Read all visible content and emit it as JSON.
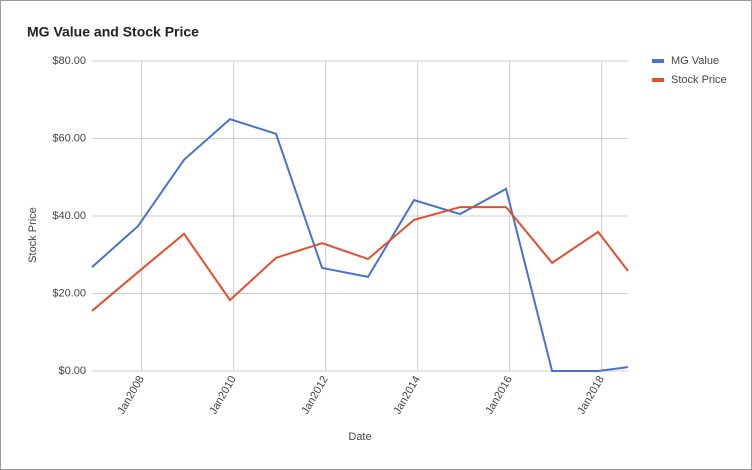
{
  "chart_data": {
    "type": "line",
    "title": "MG Value and Stock Price",
    "x_label": "Date",
    "y_label": "Stock Price",
    "x": [
      2006.92,
      2007.92,
      2008.92,
      2009.92,
      2010.92,
      2011.92,
      2012.92,
      2013.92,
      2014.92,
      2015.92,
      2016.92,
      2017.92,
      2018.57
    ],
    "series": [
      {
        "name": "MG Value",
        "color": "#4a72cd",
        "values": [
          26.8,
          37.4,
          54.5,
          65.0,
          61.2,
          26.6,
          24.3,
          44.1,
          40.5,
          47.0,
          0,
          0,
          1.0
        ]
      },
      {
        "name": "Stock Price",
        "color": "#e0502d",
        "values": [
          15.5,
          25.5,
          35.4,
          18.3,
          29.2,
          33.0,
          28.9,
          39.0,
          42.3,
          42.3,
          27.9,
          35.9,
          25.8
        ]
      }
    ],
    "xlim": [
      2006.92,
      2018.57
    ],
    "xticks": [
      {
        "value": 2008,
        "label": "Jan2008"
      },
      {
        "value": 2010,
        "label": "Jan2010"
      },
      {
        "value": 2012,
        "label": "Jan2012"
      },
      {
        "value": 2014,
        "label": "Jan2014"
      },
      {
        "value": 2016,
        "label": "Jan2016"
      },
      {
        "value": 2018,
        "label": "Jan2018"
      }
    ],
    "ylim": [
      0,
      80
    ],
    "yticks": [
      {
        "value": 0,
        "label": "$0.00"
      },
      {
        "value": 20,
        "label": "$20.00"
      },
      {
        "value": 40,
        "label": "$40.00"
      },
      {
        "value": 60,
        "label": "$60.00"
      },
      {
        "value": 80,
        "label": "$80.00"
      }
    ],
    "grid": true,
    "legend": "right"
  }
}
